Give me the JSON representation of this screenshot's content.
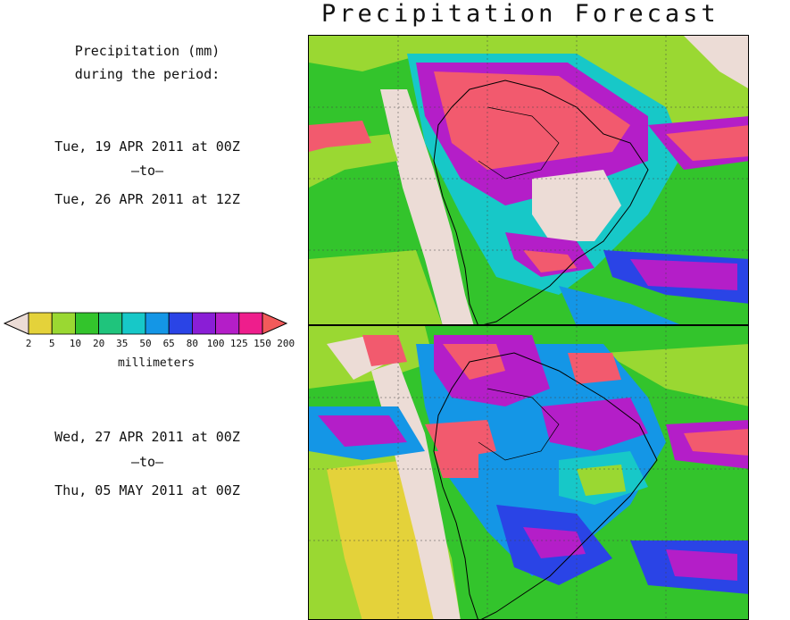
{
  "title": "Precipitation Forecast",
  "subtitle_line1": "Precipitation (mm)",
  "subtitle_line2": "during the period:",
  "periods": [
    {
      "start": "Tue, 19 APR 2011 at 00Z",
      "sep": "–to–",
      "end": "Tue, 26 APR 2011 at 12Z"
    },
    {
      "start": "Wed, 27 APR 2011 at 00Z",
      "sep": "–to–",
      "end": "Thu, 05 MAY 2011 at 00Z"
    }
  ],
  "legend": {
    "unit": "millimeters",
    "ticks": [
      "2",
      "5",
      "10",
      "20",
      "35",
      "50",
      "65",
      "80",
      "100",
      "125",
      "150",
      "200"
    ],
    "colors": [
      "#ecdcd6",
      "#e4d23a",
      "#9ad832",
      "#33c42c",
      "#1fc47c",
      "#17c8c8",
      "#1496e6",
      "#2a44e6",
      "#8a1ed6",
      "#b41ec8",
      "#ee1e8c",
      "#f25a5a"
    ]
  },
  "colors": {
    "ocean_base": "#5bd64a",
    "land_outline": "#000000",
    "high_precip": "#f25a6e"
  }
}
